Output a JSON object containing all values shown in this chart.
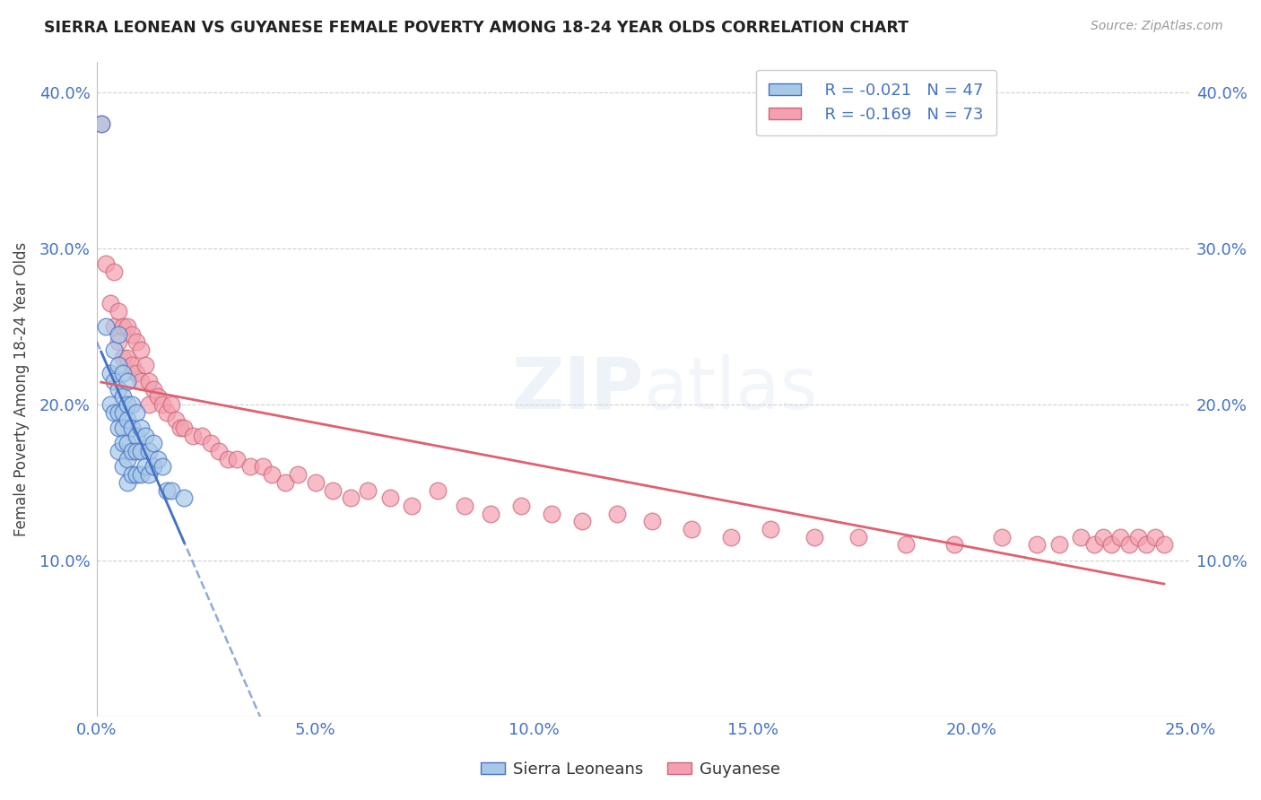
{
  "title": "SIERRA LEONEAN VS GUYANESE FEMALE POVERTY AMONG 18-24 YEAR OLDS CORRELATION CHART",
  "source": "Source: ZipAtlas.com",
  "ylabel": "Female Poverty Among 18-24 Year Olds",
  "xlim": [
    0.0,
    0.25
  ],
  "ylim": [
    0.0,
    0.42
  ],
  "xticks": [
    0.0,
    0.05,
    0.1,
    0.15,
    0.2,
    0.25
  ],
  "yticks": [
    0.0,
    0.1,
    0.2,
    0.3,
    0.4
  ],
  "grid_color": "#d0d0d0",
  "background_color": "#ffffff",
  "legend_r1": "R = -0.021",
  "legend_n1": "N = 47",
  "legend_r2": "R = -0.169",
  "legend_n2": "N = 73",
  "blue_fill": "#a8c8e8",
  "blue_edge": "#4472c4",
  "pink_fill": "#f4a0b0",
  "pink_edge": "#cc6677",
  "blue_line_color": "#4472c4",
  "pink_line_color": "#e06070",
  "axis_tick_color": "#4472c4",
  "sierra_x": [
    0.001,
    0.002,
    0.003,
    0.003,
    0.004,
    0.004,
    0.004,
    0.005,
    0.005,
    0.005,
    0.005,
    0.005,
    0.005,
    0.006,
    0.006,
    0.006,
    0.006,
    0.006,
    0.006,
    0.007,
    0.007,
    0.007,
    0.007,
    0.007,
    0.007,
    0.008,
    0.008,
    0.008,
    0.008,
    0.009,
    0.009,
    0.009,
    0.009,
    0.01,
    0.01,
    0.01,
    0.011,
    0.011,
    0.012,
    0.012,
    0.013,
    0.013,
    0.014,
    0.015,
    0.016,
    0.017,
    0.02
  ],
  "sierra_y": [
    0.38,
    0.25,
    0.22,
    0.2,
    0.235,
    0.215,
    0.195,
    0.245,
    0.225,
    0.21,
    0.195,
    0.185,
    0.17,
    0.22,
    0.205,
    0.195,
    0.185,
    0.175,
    0.16,
    0.215,
    0.2,
    0.19,
    0.175,
    0.165,
    0.15,
    0.2,
    0.185,
    0.17,
    0.155,
    0.195,
    0.18,
    0.17,
    0.155,
    0.185,
    0.17,
    0.155,
    0.18,
    0.16,
    0.17,
    0.155,
    0.175,
    0.16,
    0.165,
    0.16,
    0.145,
    0.145,
    0.14
  ],
  "guyanese_x": [
    0.001,
    0.002,
    0.003,
    0.004,
    0.004,
    0.005,
    0.005,
    0.006,
    0.006,
    0.007,
    0.007,
    0.008,
    0.008,
    0.009,
    0.009,
    0.01,
    0.01,
    0.011,
    0.012,
    0.012,
    0.013,
    0.014,
    0.015,
    0.016,
    0.017,
    0.018,
    0.019,
    0.02,
    0.022,
    0.024,
    0.026,
    0.028,
    0.03,
    0.032,
    0.035,
    0.038,
    0.04,
    0.043,
    0.046,
    0.05,
    0.054,
    0.058,
    0.062,
    0.067,
    0.072,
    0.078,
    0.084,
    0.09,
    0.097,
    0.104,
    0.111,
    0.119,
    0.127,
    0.136,
    0.145,
    0.154,
    0.164,
    0.174,
    0.185,
    0.196,
    0.207,
    0.215,
    0.22,
    0.225,
    0.228,
    0.23,
    0.232,
    0.234,
    0.236,
    0.238,
    0.24,
    0.242,
    0.244
  ],
  "guyanese_y": [
    0.38,
    0.29,
    0.265,
    0.285,
    0.25,
    0.26,
    0.24,
    0.25,
    0.23,
    0.25,
    0.23,
    0.245,
    0.225,
    0.24,
    0.22,
    0.235,
    0.215,
    0.225,
    0.215,
    0.2,
    0.21,
    0.205,
    0.2,
    0.195,
    0.2,
    0.19,
    0.185,
    0.185,
    0.18,
    0.18,
    0.175,
    0.17,
    0.165,
    0.165,
    0.16,
    0.16,
    0.155,
    0.15,
    0.155,
    0.15,
    0.145,
    0.14,
    0.145,
    0.14,
    0.135,
    0.145,
    0.135,
    0.13,
    0.135,
    0.13,
    0.125,
    0.13,
    0.125,
    0.12,
    0.115,
    0.12,
    0.115,
    0.115,
    0.11,
    0.11,
    0.115,
    0.11,
    0.11,
    0.115,
    0.11,
    0.115,
    0.11,
    0.115,
    0.11,
    0.115,
    0.11,
    0.115,
    0.11
  ]
}
